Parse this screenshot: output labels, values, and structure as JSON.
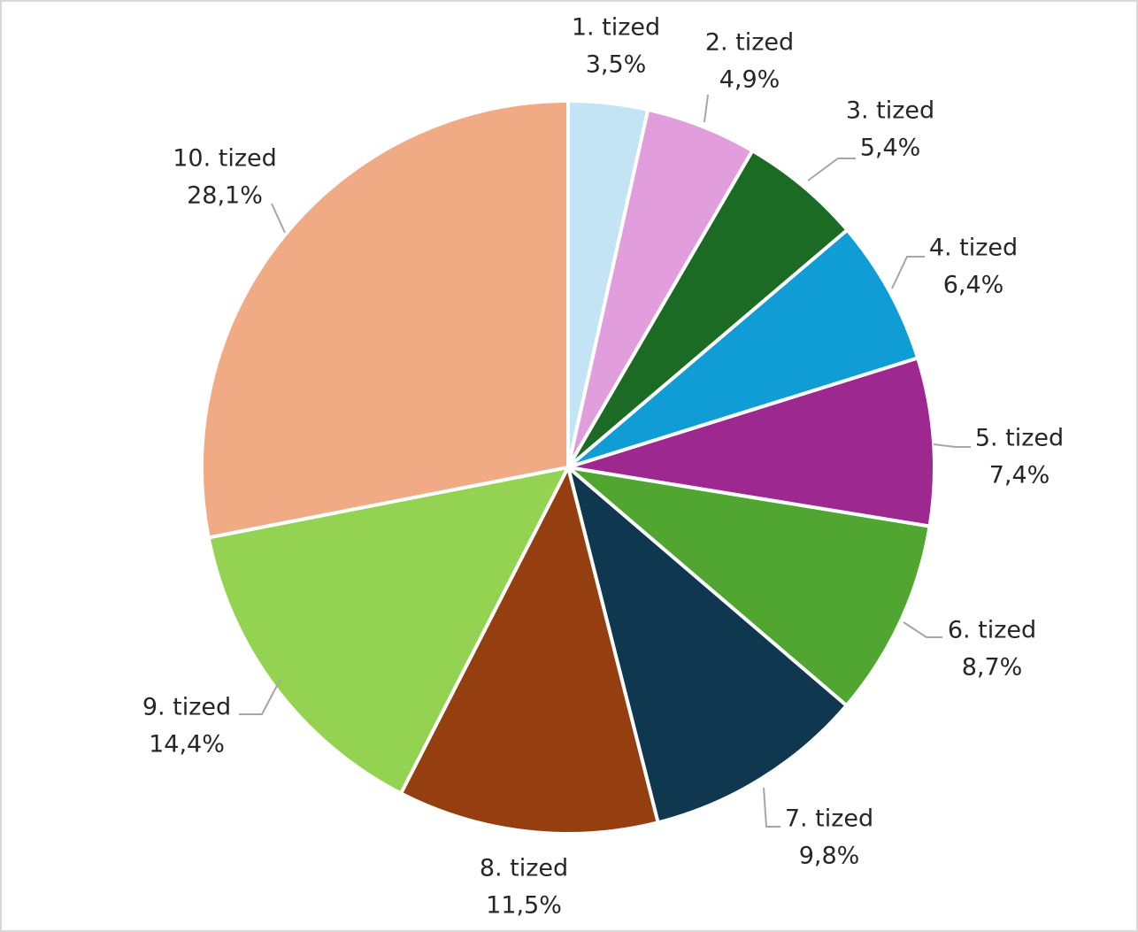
{
  "chart_data": {
    "type": "pie",
    "title": "",
    "start_angle_deg": 0,
    "direction": "clockwise",
    "legend": "none",
    "data_labels": "outside with leader lines",
    "slices": [
      {
        "label": "1. tized",
        "value": 3.5,
        "value_label": "3,5%",
        "color": "#c2e4f4"
      },
      {
        "label": "2. tized",
        "value": 4.9,
        "value_label": "4,9%",
        "color": "#e29ddc"
      },
      {
        "label": "3. tized",
        "value": 5.4,
        "value_label": "5,4%",
        "color": "#1c6b24"
      },
      {
        "label": "4. tized",
        "value": 6.4,
        "value_label": "6,4%",
        "color": "#109dd6"
      },
      {
        "label": "5. tized",
        "value": 7.4,
        "value_label": "7,4%",
        "color": "#9d2890"
      },
      {
        "label": "6. tized",
        "value": 8.7,
        "value_label": "8,7%",
        "color": "#50a630"
      },
      {
        "label": "7. tized",
        "value": 9.8,
        "value_label": "9,8%",
        "color": "#0f374f"
      },
      {
        "label": "8. tized",
        "value": 11.5,
        "value_label": "11,5%",
        "color": "#953f10"
      },
      {
        "label": "9. tized",
        "value": 14.4,
        "value_label": "14,4%",
        "color": "#94d251"
      },
      {
        "label": "10. tized",
        "value": 28.1,
        "value_label": "28,1%",
        "color": "#f0aa84"
      }
    ]
  }
}
